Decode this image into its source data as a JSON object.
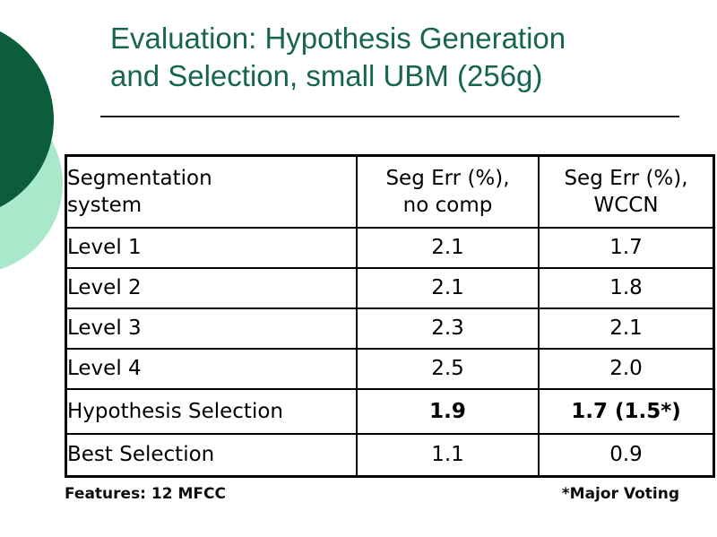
{
  "slide": {
    "title_line1": "Evaluation: Hypothesis Generation",
    "title_line2": "and Selection, small UBM (256g)",
    "colors": {
      "title_green": "#176551",
      "circle_dark": "#0b5d3c",
      "circle_light": "#a9e8cb",
      "table_border": "#000000",
      "text": "#000000"
    }
  },
  "table": {
    "headers": {
      "col1": "Segmentation\nsystem",
      "col2": "Seg Err (%),\nno comp",
      "col3": "Seg Err (%),\nWCCN"
    },
    "rows": [
      {
        "label": "Level 1",
        "no_comp": "2.1",
        "wccn": "1.7"
      },
      {
        "label": "Level 2",
        "no_comp": "2.1",
        "wccn": "1.8"
      },
      {
        "label": "Level 3",
        "no_comp": "2.3",
        "wccn": "2.1"
      },
      {
        "label": "Level 4",
        "no_comp": "2.5",
        "wccn": "2.0"
      },
      {
        "label": "Hypothesis Selection",
        "no_comp": "1.9",
        "wccn": "1.7 (1.5*)"
      },
      {
        "label": "Best Selection",
        "no_comp": "1.1",
        "wccn": "0.9"
      }
    ]
  },
  "footer": {
    "left": "Features: 12 MFCC",
    "right": "*Major Voting"
  }
}
